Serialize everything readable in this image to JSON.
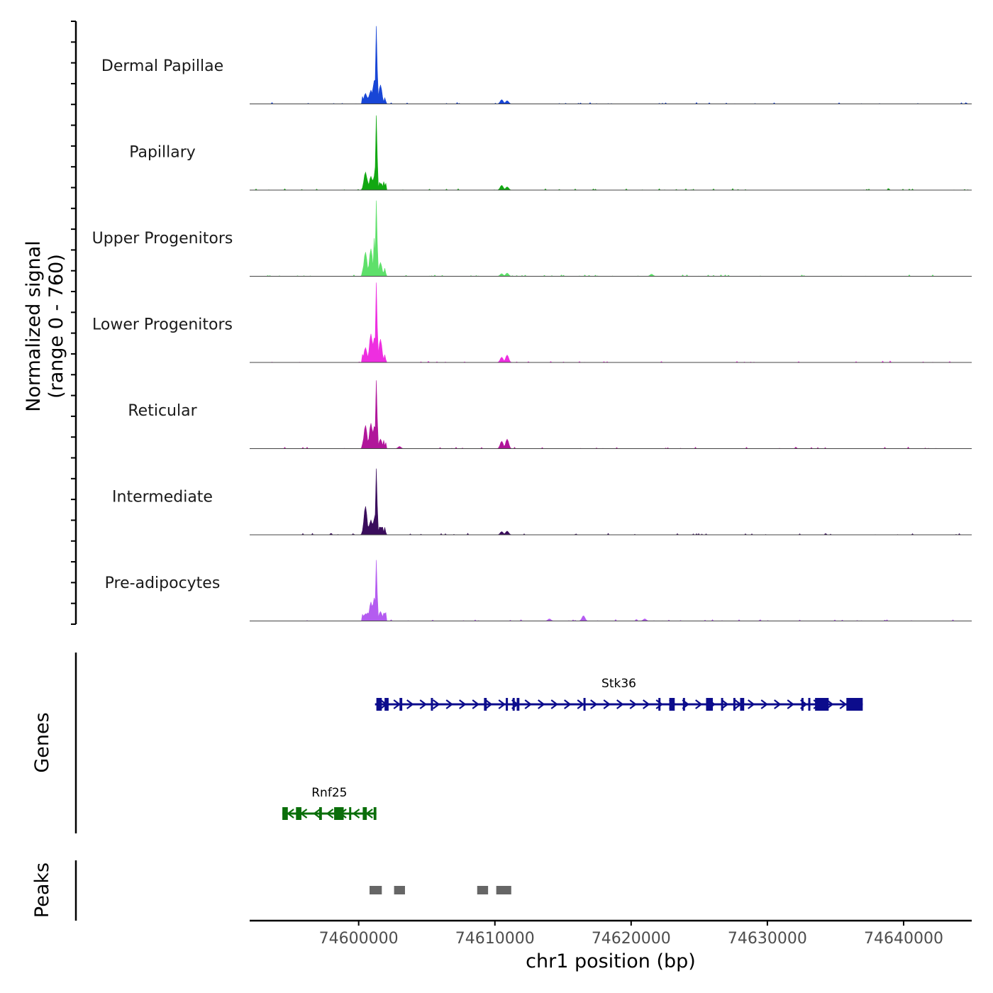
{
  "chart_data": {
    "type": "area",
    "kind": "genome coverage plot",
    "y_axis_title_line1": "Normalized signal",
    "y_axis_title_line2": "(range 0 - 760)",
    "y_range": [
      0,
      760
    ],
    "x_axis_title": "chr1 position (bp)",
    "x_ticks": [
      74600000,
      74610000,
      74620000,
      74630000,
      74640000
    ],
    "x_tick_labels": [
      "74600000",
      "74610000",
      "74620000",
      "74630000",
      "74640000"
    ],
    "xlim": [
      74592000,
      74645000
    ],
    "tracks": [
      {
        "name": "Dermal Papillae",
        "color": "#1846d6",
        "peaks": [
          [
            74600500,
            100
          ],
          [
            74600900,
            130
          ],
          [
            74601150,
            220
          ],
          [
            74601300,
            740
          ],
          [
            74601600,
            180
          ],
          [
            74610500,
            40
          ],
          [
            74610900,
            30
          ]
        ]
      },
      {
        "name": "Papillary",
        "color": "#12a812",
        "peaks": [
          [
            74600500,
            170
          ],
          [
            74600900,
            130
          ],
          [
            74601150,
            130
          ],
          [
            74601300,
            710
          ],
          [
            74601600,
            60
          ],
          [
            74610500,
            45
          ],
          [
            74610900,
            30
          ]
        ]
      },
      {
        "name": "Upper Progenitors",
        "color": "#5ee06a",
        "peaks": [
          [
            74600500,
            230
          ],
          [
            74600900,
            260
          ],
          [
            74601150,
            370
          ],
          [
            74601300,
            720
          ],
          [
            74601600,
            130
          ],
          [
            74610500,
            25
          ],
          [
            74610900,
            30
          ],
          [
            74621500,
            20
          ]
        ]
      },
      {
        "name": "Lower Progenitors",
        "color": "#ee2ee0",
        "peaks": [
          [
            74600500,
            140
          ],
          [
            74600900,
            270
          ],
          [
            74601150,
            230
          ],
          [
            74601300,
            760
          ],
          [
            74601600,
            220
          ],
          [
            74610500,
            50
          ],
          [
            74610900,
            70
          ]
        ]
      },
      {
        "name": "Reticular",
        "color": "#b0169a",
        "peaks": [
          [
            74600500,
            220
          ],
          [
            74600900,
            240
          ],
          [
            74601150,
            210
          ],
          [
            74601300,
            650
          ],
          [
            74601600,
            90
          ],
          [
            74610500,
            70
          ],
          [
            74610900,
            90
          ],
          [
            74603000,
            20
          ]
        ]
      },
      {
        "name": "Intermediate",
        "color": "#3a0d5c",
        "peaks": [
          [
            74600500,
            270
          ],
          [
            74600900,
            140
          ],
          [
            74601150,
            150
          ],
          [
            74601300,
            630
          ],
          [
            74601600,
            70
          ],
          [
            74610500,
            30
          ],
          [
            74610900,
            35
          ]
        ]
      },
      {
        "name": "Pre-adipocytes",
        "color": "#b45cf0",
        "peaks": [
          [
            74600500,
            70
          ],
          [
            74600900,
            180
          ],
          [
            74601150,
            220
          ],
          [
            74601300,
            580
          ],
          [
            74601600,
            90
          ],
          [
            74616500,
            50
          ],
          [
            74614000,
            20
          ],
          [
            74621000,
            20
          ]
        ]
      }
    ],
    "genes_title": "Genes",
    "genes": [
      {
        "name": "Stk36",
        "strand": "+",
        "start": 74601200,
        "end": 74637000,
        "color": "#0c0c8c",
        "exons": [
          [
            74601300,
            74601700
          ],
          [
            74601900,
            74602200
          ],
          [
            74603000,
            74603200
          ],
          [
            74605300,
            74605400
          ],
          [
            74609200,
            74609400
          ],
          [
            74610800,
            74610950
          ],
          [
            74611300,
            74611400
          ],
          [
            74611600,
            74611800
          ],
          [
            74616500,
            74616600
          ],
          [
            74622000,
            74622150
          ],
          [
            74622800,
            74623200
          ],
          [
            74623800,
            74623900
          ],
          [
            74625500,
            74626000
          ],
          [
            74626600,
            74626700
          ],
          [
            74627500,
            74627600
          ],
          [
            74628000,
            74628300
          ],
          [
            74632500,
            74632600
          ],
          [
            74633000,
            74633100
          ],
          [
            74633500,
            74634500
          ],
          [
            74635800,
            74637000
          ]
        ]
      },
      {
        "name": "Rnf25",
        "strand": "-",
        "start": 74594400,
        "end": 74601300,
        "color": "#0a6e0a",
        "exons": [
          [
            74594400,
            74594800
          ],
          [
            74595400,
            74595800
          ],
          [
            74597100,
            74597300
          ],
          [
            74598200,
            74598900
          ],
          [
            74599300,
            74599400
          ],
          [
            74600300,
            74600600
          ],
          [
            74601100,
            74601300
          ]
        ]
      }
    ],
    "peaks_title": "Peaks",
    "peak_regions": [
      [
        74600800,
        74601700
      ],
      [
        74602600,
        74603400
      ],
      [
        74608700,
        74609500
      ],
      [
        74610100,
        74611200
      ]
    ]
  }
}
